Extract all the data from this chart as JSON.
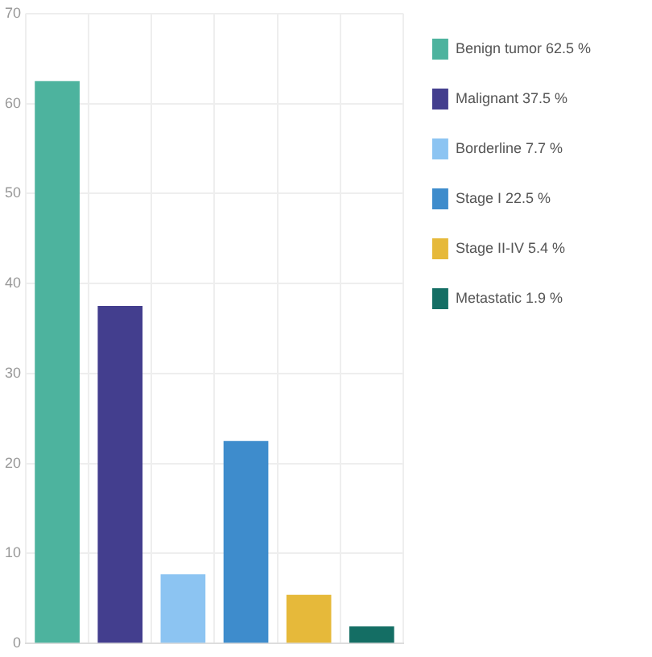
{
  "chart_data": {
    "type": "bar",
    "categories": [
      null,
      null,
      null,
      null,
      null,
      null
    ],
    "series": [
      {
        "name": "Benign tumor 62.5 %",
        "color": "#4db39e",
        "values": [
          62.5,
          null,
          null,
          null,
          null,
          null
        ]
      },
      {
        "name": "Malignant 37.5 %",
        "color": "#433e8e",
        "values": [
          null,
          37.5,
          null,
          null,
          null,
          null
        ]
      },
      {
        "name": "Borderline 7.7 %",
        "color": "#8cc4f2",
        "values": [
          null,
          null,
          7.7,
          null,
          null,
          null
        ]
      },
      {
        "name": "Stage I 22.5 %",
        "color": "#3e8ccc",
        "values": [
          null,
          null,
          null,
          22.5,
          null,
          null
        ]
      },
      {
        "name": "Stage II-IV 5.4 %",
        "color": "#e6b93a",
        "values": [
          null,
          null,
          null,
          null,
          5.4,
          null
        ]
      },
      {
        "name": "Metastatic 1.9 %",
        "color": "#146e64",
        "values": [
          null,
          null,
          null,
          null,
          null,
          1.9
        ]
      }
    ],
    "ylim": [
      0,
      70
    ],
    "yticks": [
      0,
      10,
      20,
      30,
      40,
      50,
      60,
      70
    ],
    "grid": true,
    "legend": "top right",
    "tick_labels": "y"
  }
}
